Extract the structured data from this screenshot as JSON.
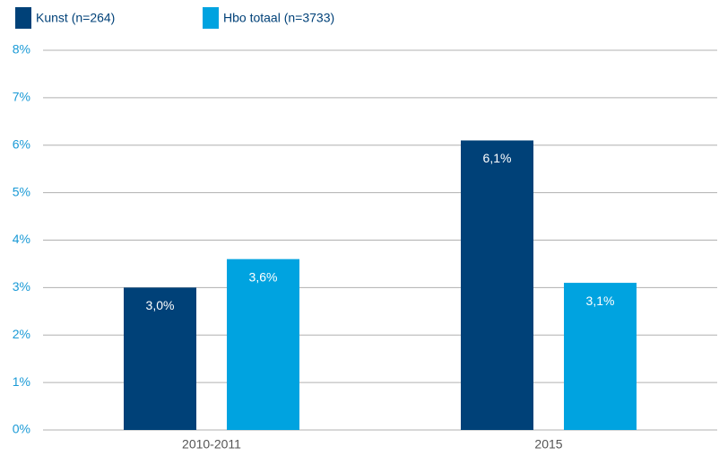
{
  "chart_data": {
    "type": "bar",
    "categories": [
      "2010-2011",
      "2015"
    ],
    "series": [
      {
        "name": "Kunst (n=264)",
        "color": "#004178",
        "values": [
          3.0,
          6.1
        ],
        "value_labels": [
          "3,0%",
          "6,1%"
        ]
      },
      {
        "name": "Hbo totaal (n=3733)",
        "color": "#00a3e0",
        "values": [
          3.6,
          3.1
        ],
        "value_labels": [
          "3,6%",
          "3,1%"
        ]
      }
    ],
    "ylim": [
      0,
      8
    ],
    "yticks": [
      {
        "value": 0,
        "label": "0%"
      },
      {
        "value": 1,
        "label": "1%"
      },
      {
        "value": 2,
        "label": "2%"
      },
      {
        "value": 3,
        "label": "3%"
      },
      {
        "value": 4,
        "label": "4%"
      },
      {
        "value": 5,
        "label": "5%"
      },
      {
        "value": 6,
        "label": "6%"
      },
      {
        "value": 7,
        "label": "7%"
      },
      {
        "value": 8,
        "label": "8%"
      }
    ],
    "grid": true,
    "legend": "top-left"
  }
}
